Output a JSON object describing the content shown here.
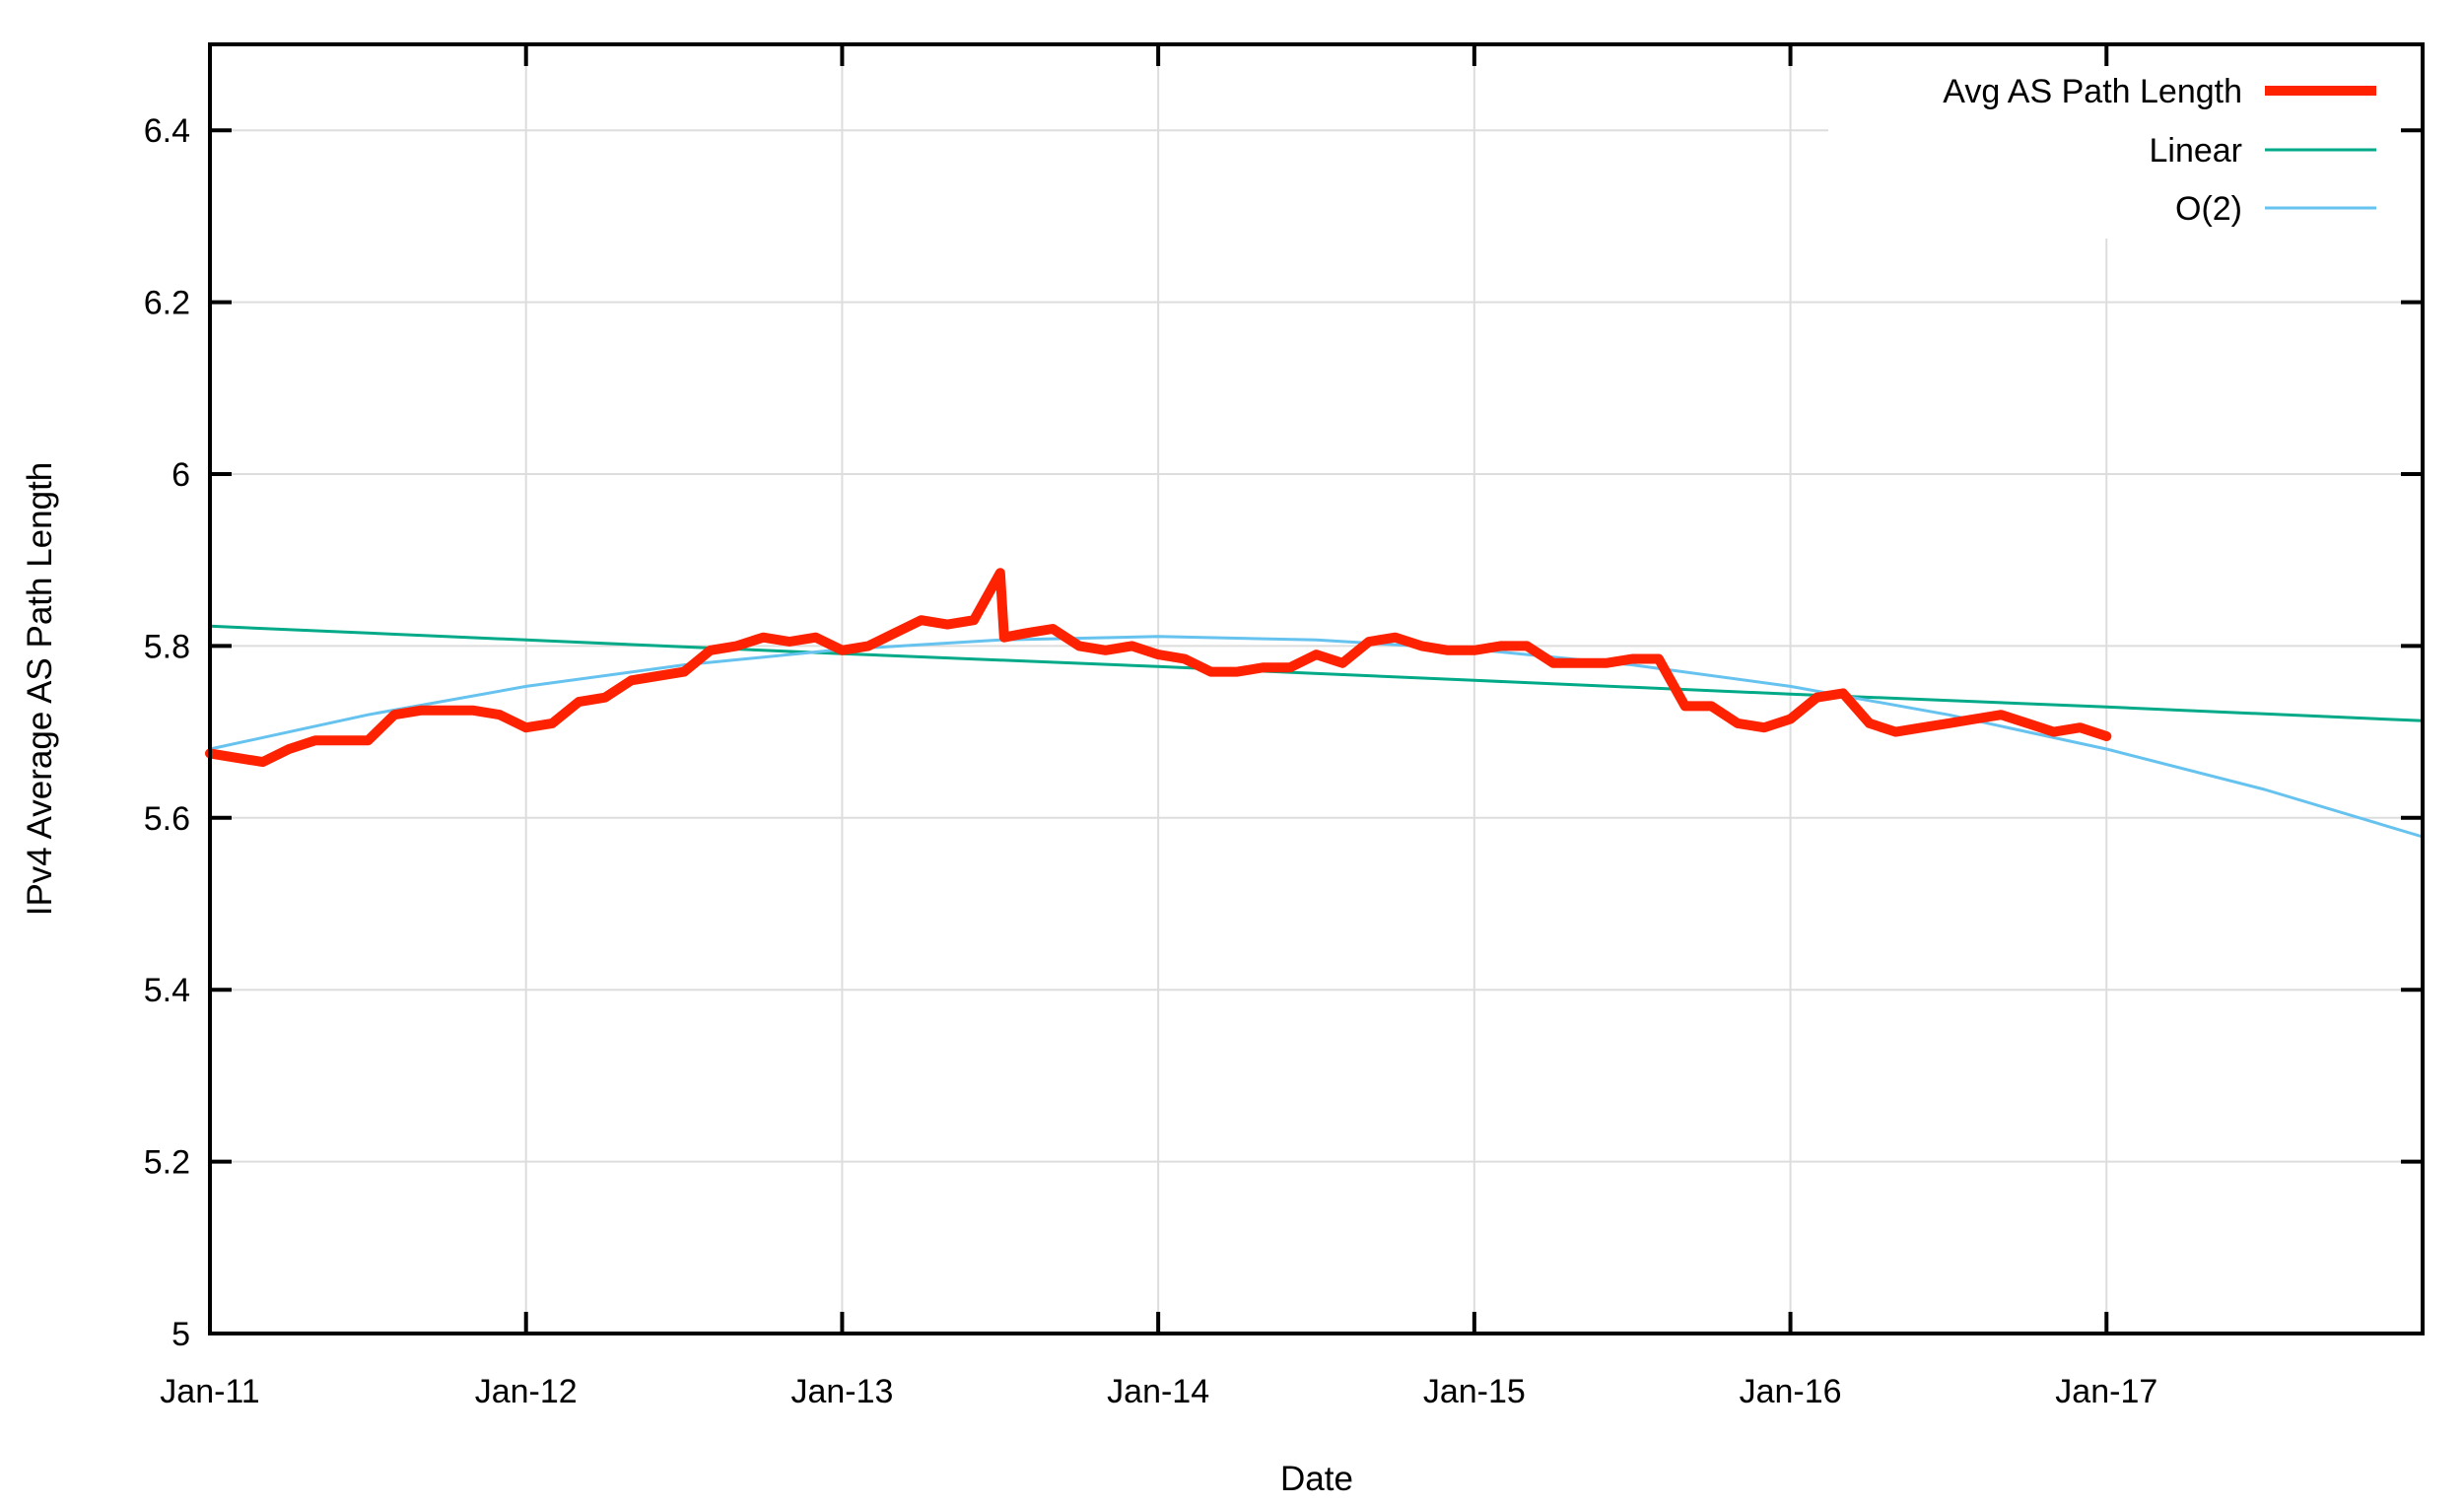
{
  "chart_data": {
    "type": "line",
    "title": "",
    "xlabel": "Date",
    "ylabel": "IPv4 Average AS Path Length",
    "xlim": [
      "2011-01",
      "2018-01"
    ],
    "ylim": [
      5,
      6.5
    ],
    "grid": true,
    "legend_position": "top-right",
    "x_ticks": [
      {
        "date": "2011-01",
        "label": "Jan-11"
      },
      {
        "date": "2012-01",
        "label": "Jan-12"
      },
      {
        "date": "2013-01",
        "label": "Jan-13"
      },
      {
        "date": "2014-01",
        "label": "Jan-14"
      },
      {
        "date": "2015-01",
        "label": "Jan-15"
      },
      {
        "date": "2016-01",
        "label": "Jan-16"
      },
      {
        "date": "2017-01",
        "label": "Jan-17"
      }
    ],
    "y_ticks": [
      {
        "value": 5,
        "label": "5"
      },
      {
        "value": 5.2,
        "label": "5.2"
      },
      {
        "value": 5.4,
        "label": "5.4"
      },
      {
        "value": 5.6,
        "label": "5.6"
      },
      {
        "value": 5.8,
        "label": "5.8"
      },
      {
        "value": 6,
        "label": "6"
      },
      {
        "value": 6.2,
        "label": "6.2"
      },
      {
        "value": 6.4,
        "label": "6.4"
      }
    ],
    "series": [
      {
        "name": "Avg AS Path Length",
        "color": "#ff2200",
        "x": [
          "2011-01",
          "2011-02",
          "2011-03",
          "2011-04",
          "2011-05",
          "2011-06",
          "2011-07",
          "2011-08",
          "2011-09",
          "2011-10",
          "2011-11",
          "2011-12",
          "2012-01",
          "2012-02",
          "2012-03",
          "2012-04",
          "2012-05",
          "2012-06",
          "2012-07",
          "2012-08",
          "2012-09",
          "2012-10",
          "2012-11",
          "2012-12",
          "2013-01",
          "2013-02",
          "2013-03",
          "2013-04",
          "2013-05",
          "2013-06",
          "2013-07",
          "2013-07",
          "2013-08",
          "2013-09",
          "2013-10",
          "2013-11",
          "2013-12",
          "2014-01",
          "2014-02",
          "2014-03",
          "2014-04",
          "2014-05",
          "2014-06",
          "2014-07",
          "2014-08",
          "2014-09",
          "2014-10",
          "2014-11",
          "2014-12",
          "2015-01",
          "2015-02",
          "2015-03",
          "2015-04",
          "2015-05",
          "2015-06",
          "2015-07",
          "2015-08",
          "2015-09",
          "2015-10",
          "2015-11",
          "2015-12",
          "2016-01",
          "2016-02",
          "2016-03",
          "2016-04",
          "2016-05",
          "2016-06",
          "2016-07",
          "2016-08",
          "2016-09",
          "2016-10",
          "2016-11",
          "2016-12",
          "2017-01"
        ],
        "y": [
          5.675,
          5.67,
          5.665,
          5.68,
          5.69,
          5.69,
          5.69,
          5.72,
          5.725,
          5.725,
          5.725,
          5.72,
          5.705,
          5.71,
          5.735,
          5.74,
          5.76,
          5.765,
          5.77,
          5.795,
          5.8,
          5.81,
          5.805,
          5.81,
          5.795,
          5.8,
          5.815,
          5.83,
          5.825,
          5.83,
          5.885,
          5.81,
          5.815,
          5.82,
          5.8,
          5.795,
          5.8,
          5.79,
          5.785,
          5.77,
          5.77,
          5.775,
          5.775,
          5.79,
          5.78,
          5.805,
          5.81,
          5.8,
          5.795,
          5.795,
          5.8,
          5.8,
          5.78,
          5.78,
          5.78,
          5.785,
          5.785,
          5.73,
          5.73,
          5.71,
          5.705,
          5.715,
          5.74,
          5.745,
          5.71,
          5.7,
          5.705,
          5.71,
          5.715,
          5.72,
          5.71,
          5.7,
          5.705,
          5.695
        ]
      },
      {
        "name": "Linear",
        "color": "#00aa88",
        "x": [
          "2011-01",
          "2012-01",
          "2013-01",
          "2014-01",
          "2015-01",
          "2016-01",
          "2017-01",
          "2018-01"
        ],
        "y": [
          5.823,
          5.807,
          5.791,
          5.776,
          5.76,
          5.744,
          5.729,
          5.713
        ]
      },
      {
        "name": "O(2)",
        "color": "#66c2ee",
        "x": [
          "2011-01",
          "2011-07",
          "2012-01",
          "2012-07",
          "2013-01",
          "2013-07",
          "2014-01",
          "2014-07",
          "2015-01",
          "2015-07",
          "2016-01",
          "2016-07",
          "2017-01",
          "2017-07",
          "2018-01"
        ],
        "y": [
          5.68,
          5.72,
          5.753,
          5.778,
          5.796,
          5.807,
          5.811,
          5.807,
          5.796,
          5.778,
          5.753,
          5.72,
          5.68,
          5.633,
          5.578
        ]
      }
    ]
  }
}
